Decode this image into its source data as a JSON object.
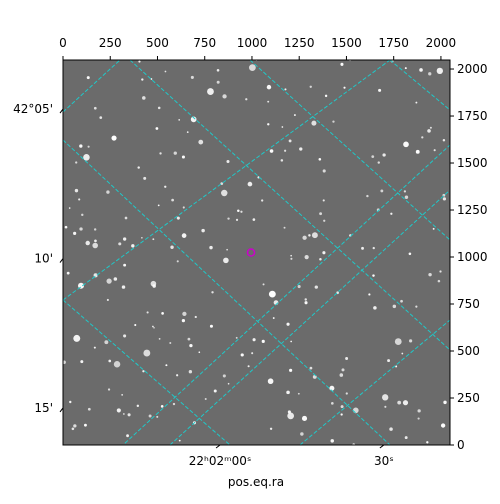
{
  "chart_data": {
    "type": "image",
    "xlabel": "pos.eq.ra",
    "xlim": [
      0,
      2048
    ],
    "ylim": [
      0,
      2048
    ],
    "xticks": [
      0,
      250,
      500,
      750,
      1000,
      1250,
      1500,
      1750,
      2000
    ],
    "yticks": [
      0,
      250,
      500,
      750,
      1000,
      1250,
      1500,
      1750,
      2000
    ],
    "left_ticks": [
      {
        "value": 1787,
        "label": "42°05'"
      },
      {
        "value": 992,
        "label": "10'"
      },
      {
        "value": 197,
        "label": "15'"
      }
    ],
    "bottom_ticks": [
      {
        "value": 831,
        "label": "22ʰ02ᵐ00ˢ"
      },
      {
        "value": 1698,
        "label": "30ˢ"
      }
    ],
    "grid_color": "#20c8c8",
    "marker": {
      "x": 995,
      "y": 1024,
      "color": "#cc00cc"
    }
  }
}
